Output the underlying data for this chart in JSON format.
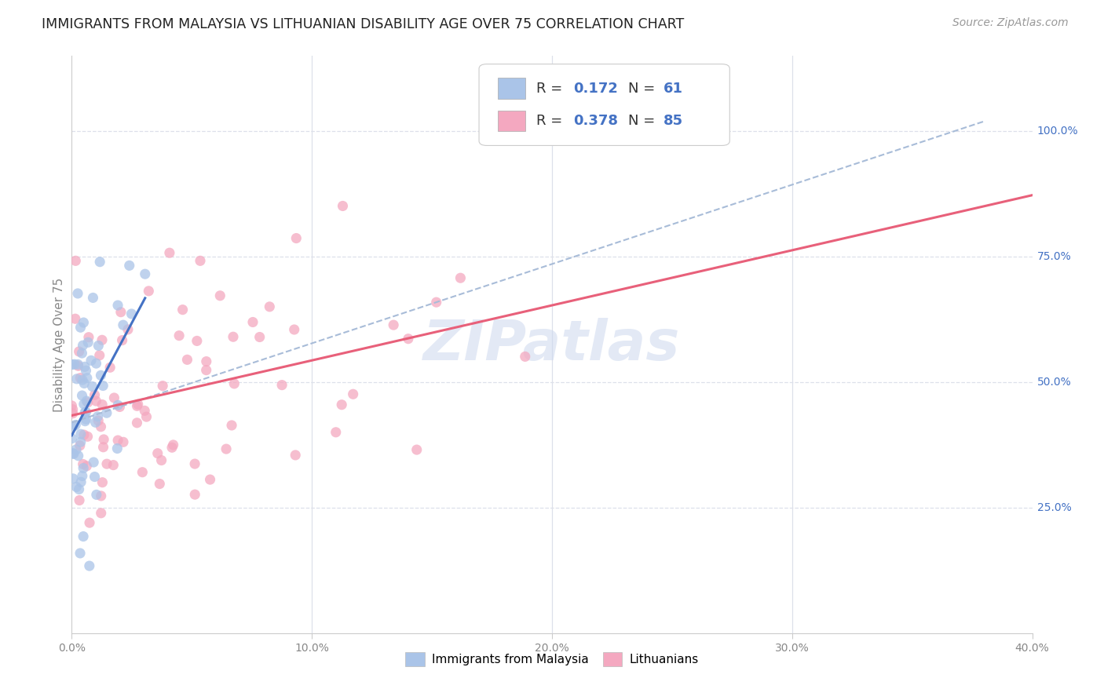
{
  "title": "IMMIGRANTS FROM MALAYSIA VS LITHUANIAN DISABILITY AGE OVER 75 CORRELATION CHART",
  "source": "Source: ZipAtlas.com",
  "ylabel": "Disability Age Over 75",
  "legend_labels": [
    "Immigrants from Malaysia",
    "Lithuanians"
  ],
  "r_malaysia": 0.172,
  "n_malaysia": 61,
  "r_lithuania": 0.378,
  "n_lithuania": 85,
  "malaysia_color": "#aac4e8",
  "lithuania_color": "#f4a8c0",
  "malaysia_line_color": "#4472c4",
  "lithuania_line_color": "#e8607a",
  "dashed_line_color": "#a8bcd8",
  "background_color": "#ffffff",
  "grid_color": "#dde0ea",
  "right_label_color": "#4472c4",
  "text_color": "#333333",
  "watermark_color": "#ccd8ee",
  "title_fontsize": 12.5,
  "source_fontsize": 10,
  "axis_label_fontsize": 11,
  "tick_fontsize": 10,
  "legend_fontsize": 13,
  "watermark_fontsize": 52
}
